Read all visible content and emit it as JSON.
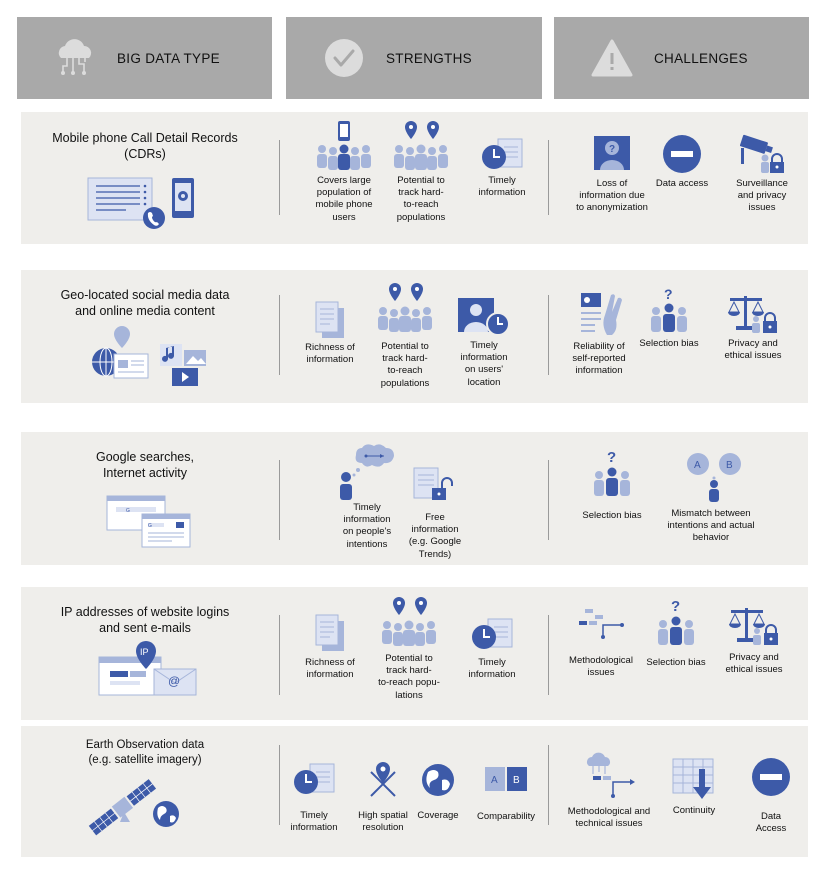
{
  "headers": {
    "type": "BIG DATA TYPE",
    "strengths": "STRENGTHS",
    "challenges": "CHALLENGES"
  },
  "colors": {
    "header_bg": "#a9a9a9",
    "row_bg": "#efeeeb",
    "accent": "#3d5aa8",
    "light": "#a6b5da"
  },
  "rows": [
    {
      "title": "Mobile phone Call Detail Records\n(CDRs)",
      "strengths": [
        {
          "label": "Covers large\npopulation of\nmobile phone\nusers",
          "icon": "crowd-phone-icon"
        },
        {
          "label": "Potential to\ntrack hard-\nto-reach\npopulations",
          "icon": "crowd-pins-icon"
        },
        {
          "label": "Timely\ninformation",
          "icon": "clock-document-icon"
        }
      ],
      "challenges": [
        {
          "label": "Loss of\ninformation due\nto anonymization",
          "icon": "anonymous-profile-icon"
        },
        {
          "label": "Data access",
          "icon": "no-entry-icon"
        },
        {
          "label": "Surveillance\nand privacy\nissues",
          "icon": "camera-lock-icon"
        }
      ]
    },
    {
      "title": "Geo-located social media data\nand online media content",
      "strengths": [
        {
          "label": "Richness of\ninformation",
          "icon": "documents-icon"
        },
        {
          "label": "Potential to\ntrack hard-\nto-reach\npopulations",
          "icon": "crowd-pins-icon"
        },
        {
          "label": "Timely\ninformation\non users'\nlocation",
          "icon": "profile-clock-icon"
        }
      ],
      "challenges": [
        {
          "label": "Reliability of\nself-reported\ninformation",
          "icon": "crossed-fingers-icon"
        },
        {
          "label": "Selection bias",
          "icon": "group-question-icon"
        },
        {
          "label": "Privacy and\nethical issues",
          "icon": "scale-lock-icon"
        }
      ]
    },
    {
      "title": "Google searches,\nInternet activity",
      "strengths": [
        {
          "label": "Timely\ninformation\non people's\nintentions",
          "icon": "person-thought-icon"
        },
        {
          "label": "Free\ninformation\n(e.g. Google\nTrends)",
          "icon": "document-unlock-icon"
        }
      ],
      "challenges": [
        {
          "label": "Selection bias",
          "icon": "group-question-icon"
        },
        {
          "label": "Mismatch between\nintentions and actual\nbehavior",
          "icon": "ab-choice-icon"
        }
      ]
    },
    {
      "title": "IP addresses of website logins\nand sent e-mails",
      "strengths": [
        {
          "label": "Richness of\ninformation",
          "icon": "documents-icon"
        },
        {
          "label": "Potential to\ntrack hard-\nto-reach popu-\nlations",
          "icon": "crowd-pins-icon"
        },
        {
          "label": "Timely\ninformation",
          "icon": "clock-document-icon"
        }
      ],
      "challenges": [
        {
          "label": "Methodological\nissues",
          "icon": "flow-arrow-icon"
        },
        {
          "label": "Selection bias",
          "icon": "group-question-icon"
        },
        {
          "label": "Privacy and\nethical issues",
          "icon": "scale-lock-icon"
        }
      ],
      "illus_text": "IP"
    },
    {
      "title": "Earth Observation data\n(e.g. satellite imagery)",
      "strengths": [
        {
          "label": "Timely\ninformation",
          "icon": "clock-document-icon"
        },
        {
          "label": "High spatial\nresolution",
          "icon": "pin-crosshair-icon"
        },
        {
          "label": "Coverage",
          "icon": "globe-icon"
        },
        {
          "label": "Comparability",
          "icon": "ab-boxes-icon"
        }
      ],
      "challenges": [
        {
          "label": "Methodological and\ntechnical issues",
          "icon": "cloud-flow-icon"
        },
        {
          "label": "Continuity",
          "icon": "table-arrow-icon"
        },
        {
          "label": "Data\nAccess",
          "icon": "no-entry-icon"
        }
      ]
    }
  ]
}
